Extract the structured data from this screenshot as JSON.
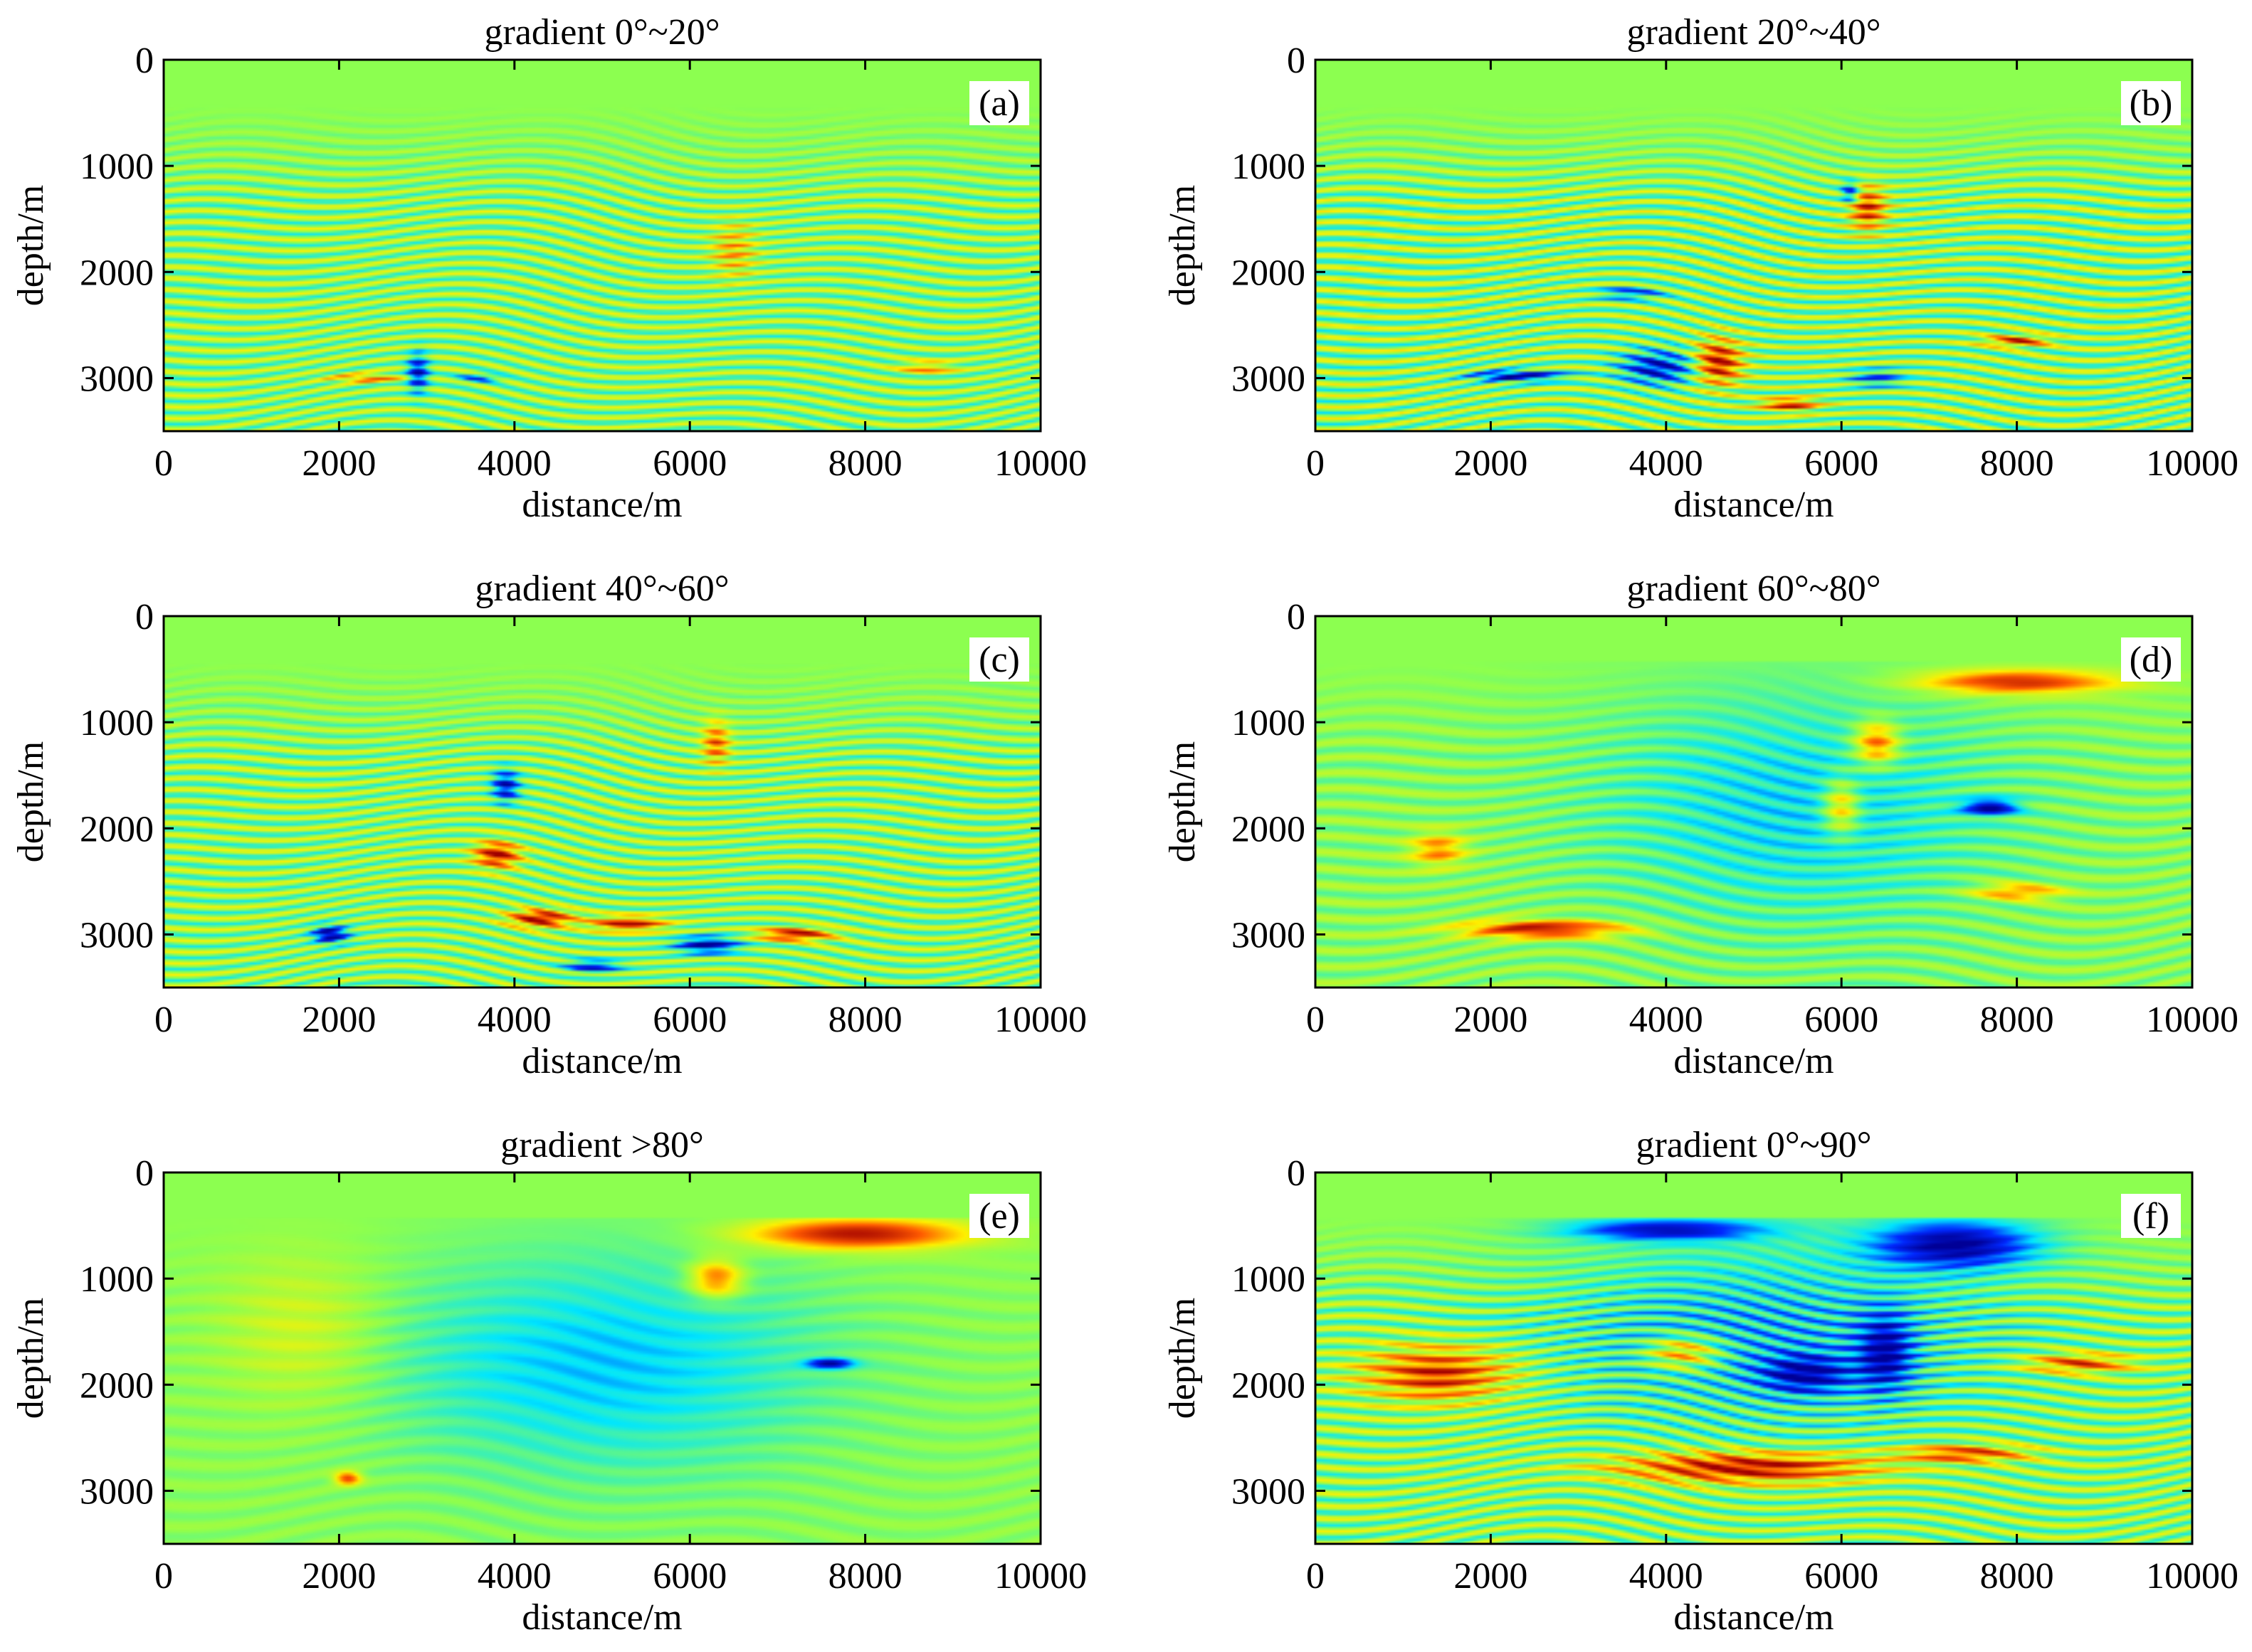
{
  "chart_data": [
    {
      "type": "heatmap",
      "title": "gradient 0°~20°",
      "panel_label": "(a)",
      "xlabel": "distance/m",
      "ylabel": "depth/m",
      "xlim": [
        0,
        10000
      ],
      "ylim": [
        0,
        3500
      ],
      "y_inverted": true,
      "xticks": [
        0,
        2000,
        4000,
        6000,
        8000,
        10000
      ],
      "yticks": [
        0,
        1000,
        2000,
        3000
      ],
      "colormap": "jet",
      "water_layer_depth": 430,
      "features": [
        {
          "type": "layers",
          "z_from": 430,
          "z_to": 3500,
          "x_from": 0,
          "x_to": 10000,
          "amp": 0.3,
          "spacing": 100
        },
        {
          "type": "blob",
          "x": 2900,
          "z": 2950,
          "rx": 120,
          "rz": 180,
          "val": -0.8
        },
        {
          "type": "blob",
          "x": 2300,
          "z": 3000,
          "rx": 400,
          "rz": 40,
          "val": 0.55
        },
        {
          "type": "blob",
          "x": 3600,
          "z": 3000,
          "rx": 250,
          "rz": 40,
          "val": -0.5
        },
        {
          "type": "blob",
          "x": 6500,
          "z": 1800,
          "rx": 250,
          "rz": 250,
          "val": 0.4
        },
        {
          "type": "blob",
          "x": 8700,
          "z": 2900,
          "rx": 300,
          "rz": 60,
          "val": 0.45
        }
      ]
    },
    {
      "type": "heatmap",
      "title": "gradient 20°~40°",
      "panel_label": "(b)",
      "xlabel": "distance/m",
      "ylabel": "depth/m",
      "xlim": [
        0,
        10000
      ],
      "ylim": [
        0,
        3500
      ],
      "y_inverted": true,
      "xticks": [
        0,
        2000,
        4000,
        6000,
        8000,
        10000
      ],
      "yticks": [
        0,
        1000,
        2000,
        3000
      ],
      "colormap": "jet",
      "water_layer_depth": 430,
      "features": [
        {
          "type": "layers",
          "z_from": 430,
          "z_to": 3500,
          "x_from": 0,
          "x_to": 10000,
          "amp": 0.35,
          "spacing": 100
        },
        {
          "type": "blob",
          "x": 2300,
          "z": 2980,
          "rx": 500,
          "rz": 50,
          "val": -0.95
        },
        {
          "type": "blob",
          "x": 3900,
          "z": 2900,
          "rx": 400,
          "rz": 150,
          "val": -0.8
        },
        {
          "type": "blob",
          "x": 4600,
          "z": 2850,
          "rx": 250,
          "rz": 200,
          "val": 0.9
        },
        {
          "type": "blob",
          "x": 5400,
          "z": 3250,
          "rx": 300,
          "rz": 60,
          "val": 0.8
        },
        {
          "type": "blob",
          "x": 6300,
          "z": 1400,
          "rx": 200,
          "rz": 200,
          "val": 0.75
        },
        {
          "type": "blob",
          "x": 6100,
          "z": 1250,
          "rx": 100,
          "rz": 100,
          "val": -0.7
        },
        {
          "type": "blob",
          "x": 8000,
          "z": 2650,
          "rx": 350,
          "rz": 50,
          "val": 0.75
        },
        {
          "type": "blob",
          "x": 3600,
          "z": 2200,
          "rx": 350,
          "rz": 60,
          "val": -0.55
        },
        {
          "type": "blob",
          "x": 6400,
          "z": 3000,
          "rx": 300,
          "rz": 80,
          "val": -0.5
        }
      ]
    },
    {
      "type": "heatmap",
      "title": "gradient 40°~60°",
      "panel_label": "(c)",
      "xlabel": "distance/m",
      "ylabel": "depth/m",
      "xlim": [
        0,
        10000
      ],
      "ylim": [
        0,
        3500
      ],
      "y_inverted": true,
      "xticks": [
        0,
        2000,
        4000,
        6000,
        8000,
        10000
      ],
      "yticks": [
        0,
        1000,
        2000,
        3000
      ],
      "colormap": "jet",
      "water_layer_depth": 430,
      "features": [
        {
          "type": "layers",
          "z_from": 430,
          "z_to": 3500,
          "x_from": 0,
          "x_to": 10000,
          "amp": 0.3,
          "spacing": 100
        },
        {
          "type": "blob",
          "x": 1900,
          "z": 3000,
          "rx": 200,
          "rz": 80,
          "val": -1.0
        },
        {
          "type": "blob",
          "x": 3800,
          "z": 2250,
          "rx": 250,
          "rz": 120,
          "val": 0.9
        },
        {
          "type": "blob",
          "x": 3900,
          "z": 1600,
          "rx": 150,
          "rz": 150,
          "val": -0.8
        },
        {
          "type": "blob",
          "x": 4300,
          "z": 2850,
          "rx": 350,
          "rz": 80,
          "val": 0.95
        },
        {
          "type": "blob",
          "x": 5300,
          "z": 2900,
          "rx": 400,
          "rz": 70,
          "val": 0.85
        },
        {
          "type": "blob",
          "x": 6200,
          "z": 3100,
          "rx": 350,
          "rz": 80,
          "val": -0.9
        },
        {
          "type": "blob",
          "x": 7200,
          "z": 3000,
          "rx": 400,
          "rz": 60,
          "val": 0.9
        },
        {
          "type": "blob",
          "x": 6300,
          "z": 1200,
          "rx": 150,
          "rz": 200,
          "val": 0.6
        },
        {
          "type": "blob",
          "x": 4900,
          "z": 3300,
          "rx": 300,
          "rz": 60,
          "val": -0.7
        }
      ]
    },
    {
      "type": "heatmap",
      "title": "gradient 60°~80°",
      "panel_label": "(d)",
      "xlabel": "distance/m",
      "ylabel": "depth/m",
      "xlim": [
        0,
        10000
      ],
      "ylim": [
        0,
        3500
      ],
      "y_inverted": true,
      "xticks": [
        0,
        2000,
        4000,
        6000,
        8000,
        10000
      ],
      "yticks": [
        0,
        1000,
        2000,
        3000
      ],
      "colormap": "jet",
      "water_layer_depth": 430,
      "features": [
        {
          "type": "layers",
          "z_from": 430,
          "z_to": 3500,
          "x_from": 0,
          "x_to": 10000,
          "amp": 0.15,
          "spacing": 140
        },
        {
          "type": "blob",
          "x": 5500,
          "z": 1800,
          "rx": 2200,
          "rz": 1100,
          "val": -0.32
        },
        {
          "type": "blob",
          "x": 2600,
          "z": 2950,
          "rx": 900,
          "rz": 80,
          "val": 0.95
        },
        {
          "type": "blob",
          "x": 8000,
          "z": 620,
          "rx": 1100,
          "rz": 110,
          "val": 0.85
        },
        {
          "type": "blob",
          "x": 6400,
          "z": 1200,
          "rx": 250,
          "rz": 200,
          "val": 0.75
        },
        {
          "type": "blob",
          "x": 6000,
          "z": 1800,
          "rx": 200,
          "rz": 250,
          "val": 0.6
        },
        {
          "type": "blob",
          "x": 7700,
          "z": 1800,
          "rx": 300,
          "rz": 70,
          "val": -0.9
        },
        {
          "type": "blob",
          "x": 8000,
          "z": 2600,
          "rx": 500,
          "rz": 80,
          "val": 0.6
        },
        {
          "type": "blob",
          "x": 1400,
          "z": 2200,
          "rx": 300,
          "rz": 150,
          "val": 0.55
        }
      ]
    },
    {
      "type": "heatmap",
      "title": "gradient >80°",
      "panel_label": "(e)",
      "xlabel": "distance/m",
      "ylabel": "depth/m",
      "xlim": [
        0,
        10000
      ],
      "ylim": [
        0,
        3500
      ],
      "y_inverted": true,
      "xticks": [
        0,
        2000,
        4000,
        6000,
        8000,
        10000
      ],
      "yticks": [
        0,
        1000,
        2000,
        3000
      ],
      "colormap": "jet",
      "water_layer_depth": 430,
      "features": [
        {
          "type": "layers",
          "z_from": 430,
          "z_to": 3500,
          "x_from": 0,
          "x_to": 10000,
          "amp": 0.06,
          "spacing": 180
        },
        {
          "type": "blob",
          "x": 5000,
          "z": 1800,
          "rx": 2400,
          "rz": 1000,
          "val": -0.38
        },
        {
          "type": "blob",
          "x": 1600,
          "z": 1500,
          "rx": 900,
          "rz": 700,
          "val": 0.22
        },
        {
          "type": "blob",
          "x": 7900,
          "z": 580,
          "rx": 1200,
          "rz": 140,
          "val": 0.95
        },
        {
          "type": "blob",
          "x": 6300,
          "z": 1000,
          "rx": 300,
          "rz": 180,
          "val": 0.7
        },
        {
          "type": "blob",
          "x": 7600,
          "z": 1800,
          "rx": 250,
          "rz": 50,
          "val": -0.85
        },
        {
          "type": "blob",
          "x": 2100,
          "z": 2880,
          "rx": 150,
          "rz": 60,
          "val": 0.8
        }
      ]
    },
    {
      "type": "heatmap",
      "title": "gradient 0°~90°",
      "panel_label": "(f)",
      "xlabel": "distance/m",
      "ylabel": "depth/m",
      "xlim": [
        0,
        10000
      ],
      "ylim": [
        0,
        3500
      ],
      "y_inverted": true,
      "xticks": [
        0,
        2000,
        4000,
        6000,
        8000,
        10000
      ],
      "yticks": [
        0,
        1000,
        2000,
        3000
      ],
      "colormap": "jet",
      "water_layer_depth": 430,
      "features": [
        {
          "type": "layers",
          "z_from": 430,
          "z_to": 3500,
          "x_from": 0,
          "x_to": 10000,
          "amp": 0.3,
          "spacing": 110
        },
        {
          "type": "blob",
          "x": 5200,
          "z": 1500,
          "rx": 2500,
          "rz": 900,
          "val": -0.35
        },
        {
          "type": "blob",
          "x": 4900,
          "z": 2780,
          "rx": 1400,
          "rz": 140,
          "val": 0.95
        },
        {
          "type": "blob",
          "x": 1400,
          "z": 1900,
          "rx": 800,
          "rz": 250,
          "val": 0.8
        },
        {
          "type": "blob",
          "x": 7300,
          "z": 680,
          "rx": 900,
          "rz": 220,
          "val": -0.95
        },
        {
          "type": "blob",
          "x": 4000,
          "z": 540,
          "rx": 1100,
          "rz": 100,
          "val": -0.8
        },
        {
          "type": "blob",
          "x": 5600,
          "z": 1900,
          "rx": 500,
          "rz": 180,
          "val": -0.75
        },
        {
          "type": "blob",
          "x": 4200,
          "z": 1700,
          "rx": 400,
          "rz": 150,
          "val": 0.65
        },
        {
          "type": "blob",
          "x": 8700,
          "z": 1800,
          "rx": 600,
          "rz": 90,
          "val": 0.7
        },
        {
          "type": "blob",
          "x": 7400,
          "z": 2650,
          "rx": 700,
          "rz": 80,
          "val": 0.75
        },
        {
          "type": "blob",
          "x": 6500,
          "z": 1700,
          "rx": 300,
          "rz": 350,
          "val": -0.8
        }
      ]
    }
  ]
}
